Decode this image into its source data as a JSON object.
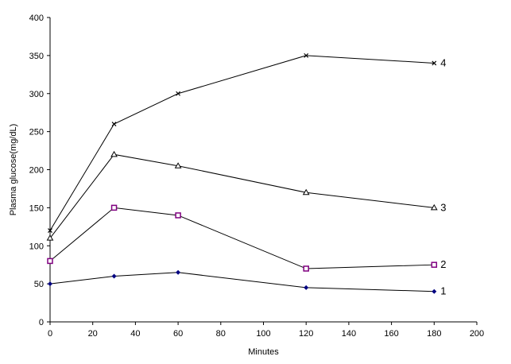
{
  "chart_data": {
    "type": "line",
    "title": "",
    "xlabel": "Minutes",
    "ylabel": "Plasma glucose(mg/dL)",
    "xlim": [
      0,
      200
    ],
    "ylim": [
      0,
      400
    ],
    "xticks": [
      0,
      20,
      40,
      60,
      80,
      100,
      120,
      140,
      160,
      180,
      200
    ],
    "yticks": [
      0,
      50,
      100,
      150,
      200,
      250,
      300,
      350,
      400
    ],
    "grid": false,
    "legend": "none",
    "series": [
      {
        "name": "1",
        "color": "#000080",
        "marker": "diamond",
        "x": [
          0,
          30,
          60,
          120,
          180
        ],
        "values": [
          50,
          60,
          65,
          45,
          40
        ]
      },
      {
        "name": "2",
        "color": "#800080",
        "marker": "square",
        "x": [
          0,
          30,
          60,
          120,
          180
        ],
        "values": [
          80,
          150,
          140,
          70,
          75
        ]
      },
      {
        "name": "3",
        "color": "#000000",
        "marker": "triangle",
        "x": [
          0,
          30,
          60,
          120,
          180
        ],
        "values": [
          110,
          220,
          205,
          170,
          150
        ]
      },
      {
        "name": "4",
        "color": "#000000",
        "marker": "cross",
        "x": [
          0,
          30,
          60,
          120,
          180
        ],
        "values": [
          120,
          260,
          300,
          350,
          340
        ]
      }
    ]
  }
}
